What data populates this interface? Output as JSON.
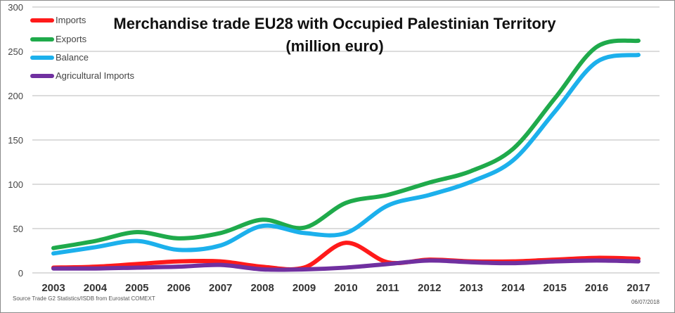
{
  "chart_data": {
    "type": "line",
    "title": "Merchandise trade EU28 with Occupied Palestinian Territory",
    "subtitle": "(million euro)",
    "xlabel": "",
    "ylabel": "",
    "ylim": [
      0,
      300
    ],
    "yticks": [
      "0",
      "50",
      "100",
      "150",
      "200",
      "250",
      "300"
    ],
    "grid": true,
    "legend_position": "top-left",
    "x": [
      "2003",
      "2004",
      "2005",
      "2006",
      "2007",
      "2008",
      "2009",
      "2010",
      "2011",
      "2012",
      "2013",
      "2014",
      "2015",
      "2016",
      "2017"
    ],
    "series": [
      {
        "name": "Imports",
        "color": "#ff1a1a",
        "values": [
          6,
          7,
          10,
          13,
          13,
          7,
          6,
          34,
          12,
          15,
          13,
          13,
          15,
          17,
          16
        ]
      },
      {
        "name": "Exports",
        "color": "#1faa4b",
        "values": [
          28,
          36,
          46,
          39,
          45,
          60,
          51,
          79,
          88,
          102,
          115,
          140,
          197,
          255,
          262
        ]
      },
      {
        "name": "Balance",
        "color": "#1cb0ec",
        "values": [
          22,
          29,
          36,
          26,
          31,
          53,
          45,
          45,
          76,
          88,
          103,
          127,
          182,
          238,
          246
        ]
      },
      {
        "name": "Agricultural Imports",
        "color": "#7030a0",
        "values": [
          5,
          5,
          6,
          7,
          9,
          4,
          4,
          6,
          10,
          14,
          12,
          11,
          13,
          14,
          13
        ]
      }
    ],
    "source": "Source Trade G2 Statistics/ISDB from Eurostat COMEXT",
    "date": "06/07/2018"
  }
}
